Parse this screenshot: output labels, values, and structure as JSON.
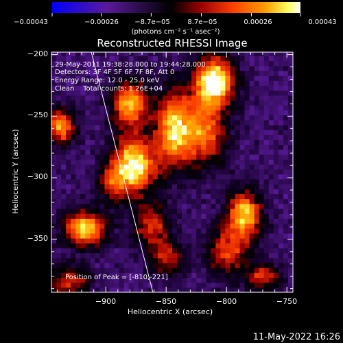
{
  "chart_data": {
    "type": "heatmap",
    "title": "Reconstructed RHESSI Image",
    "xlabel": "Heliocentric X (arcsec)",
    "ylabel": "Heliocentric Y (arcsec)",
    "xlim": [
      -945,
      -745
    ],
    "ylim": [
      -393,
      -198
    ],
    "x_ticks": [
      -900,
      -850,
      -800,
      -750
    ],
    "x_tick_labels": [
      "−900",
      "−850",
      "−800",
      "−750"
    ],
    "y_ticks": [
      -200,
      -250,
      -300,
      -350
    ],
    "y_tick_labels": [
      "−200",
      "−250",
      "−300",
      "−350"
    ],
    "colorbar": {
      "range": [
        -0.00043,
        0.00043
      ],
      "tick_labels": [
        "−0.00043",
        "−0.00026",
        "−8.7e−05",
        "8.7e−05",
        "0.00026",
        "0.00043"
      ],
      "tick_values": [
        -0.00043,
        -0.00026,
        -8.7e-05,
        8.7e-05,
        0.00026,
        0.00043
      ],
      "unit_label": "(photons cm⁻² s⁻¹ asec⁻²)",
      "colors": [
        "#0000ff",
        "#5a1a9a",
        "#000000",
        "#9a0000",
        "#ff4000",
        "#ffa000",
        "#ffff60",
        "#ffffff"
      ]
    },
    "annotations": {
      "time": "29-May-2011 19:38:28.000 to 19:44:28.000",
      "detectors": "Detectors: 3F 4F 5F 6F 7F 8F, Att 0",
      "energy": "Energy Range: 12.0 - 25.0 keV",
      "clean": "Clean    Total counts: 1.26E+04",
      "peak": "Position of Peak = [-810,-221]"
    },
    "peak": [
      -810,
      -221
    ],
    "limb_line": [
      [
        -912,
        -198
      ],
      [
        -861,
        -393
      ]
    ],
    "sources": [
      {
        "x": -877,
        "y": -290,
        "amp": 1.0,
        "sx": 13,
        "sy": 16
      },
      {
        "x": -880,
        "y": -240,
        "amp": 0.8,
        "sx": 11,
        "sy": 14
      },
      {
        "x": -810,
        "y": -221,
        "amp": 1.0,
        "sx": 12,
        "sy": 14
      },
      {
        "x": -820,
        "y": -262,
        "amp": 0.7,
        "sx": 14,
        "sy": 20
      },
      {
        "x": -845,
        "y": -260,
        "amp": 0.75,
        "sx": 10,
        "sy": 22
      },
      {
        "x": -785,
        "y": -330,
        "amp": 0.85,
        "sx": 10,
        "sy": 14
      },
      {
        "x": -800,
        "y": -360,
        "amp": 0.55,
        "sx": 12,
        "sy": 14
      },
      {
        "x": -917,
        "y": -341,
        "amp": 0.9,
        "sx": 12,
        "sy": 10
      },
      {
        "x": -937,
        "y": -258,
        "amp": 0.8,
        "sx": 8,
        "sy": 10
      },
      {
        "x": -862,
        "y": -338,
        "amp": 0.55,
        "sx": 10,
        "sy": 12
      },
      {
        "x": -850,
        "y": -365,
        "amp": 0.5,
        "sx": 10,
        "sy": 10
      },
      {
        "x": -930,
        "y": -385,
        "amp": 0.5,
        "sx": 12,
        "sy": 10
      },
      {
        "x": -770,
        "y": -380,
        "amp": 0.55,
        "sx": 10,
        "sy": 8
      },
      {
        "x": -895,
        "y": -305,
        "amp": 0.4,
        "sx": 8,
        "sy": 10
      }
    ],
    "grid": false
  },
  "footer": {
    "date": "11-May-2022 16:26"
  }
}
